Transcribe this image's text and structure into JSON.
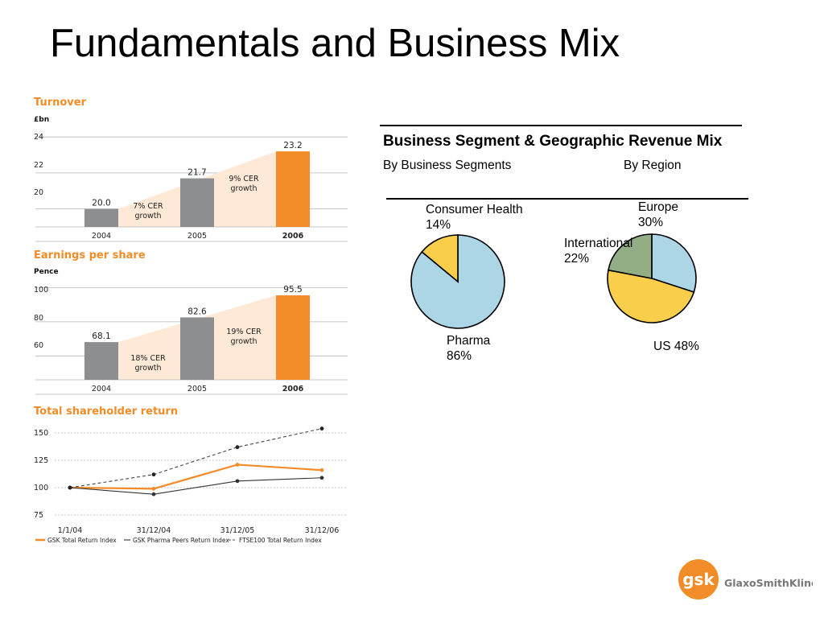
{
  "slide": {
    "title": "Fundamentals and Business Mix"
  },
  "turnover": {
    "title": "Turnover",
    "unit": "£bn",
    "y_ticks": [
      "24",
      "22",
      "20"
    ],
    "growth_labels": [
      [
        "7% CER",
        "growth"
      ],
      [
        "9% CER",
        "growth"
      ]
    ]
  },
  "eps": {
    "title": "Earnings per share",
    "unit": "Pence",
    "y_ticks": [
      "100",
      "80",
      "60"
    ],
    "growth_labels": [
      [
        "18% CER",
        "growth"
      ],
      [
        "19% CER",
        "growth"
      ]
    ]
  },
  "tsr": {
    "title": "Total shareholder return",
    "y_ticks": [
      "150",
      "125",
      "100",
      "75"
    ],
    "legend": [
      "GSK Total Return Index",
      "GSK Pharma Peers Return Index",
      "FTSE100 Total Return Index"
    ]
  },
  "mix": {
    "heading": "Business Segment & Geographic Revenue Mix",
    "sub_segments": "By Business Segments",
    "sub_region": "By Region",
    "labels": {
      "consumer_name": "Consumer Health",
      "consumer_pct": "14%",
      "pharma_name": "Pharma",
      "pharma_pct": "86%",
      "europe_name": "Europe",
      "europe_pct": "30%",
      "intl_name": "International",
      "intl_pct": "22%",
      "us": "US 48%"
    }
  },
  "logo": {
    "mark": "gsk",
    "wordmark": "GlaxoSmithKline"
  },
  "colors": {
    "orange": "#f28c28",
    "grey_bar": "#8c8e90",
    "growth_band": "#fde9d6",
    "light_blue": "#acd6e6",
    "yellow": "#f8ce4a",
    "sage": "#93ad84"
  },
  "chart_data": [
    {
      "type": "bar",
      "title": "Turnover",
      "ylabel": "£bn",
      "categories": [
        "2004",
        "2005",
        "2006"
      ],
      "values": [
        20.0,
        21.7,
        23.2
      ],
      "value_labels": [
        "20.0",
        "21.7",
        "23.2"
      ],
      "ylim": [
        19,
        24.5
      ],
      "highlight": "2006",
      "annotations": [
        "7% CER growth",
        "9% CER growth"
      ],
      "grid": true
    },
    {
      "type": "bar",
      "title": "Earnings per share",
      "ylabel": "Pence",
      "categories": [
        "2004",
        "2005",
        "2006"
      ],
      "values": [
        68.1,
        82.6,
        95.5
      ],
      "value_labels": [
        "68.1",
        "82.6",
        "95.5"
      ],
      "ylim": [
        46,
        104
      ],
      "highlight": "2006",
      "annotations": [
        "18% CER growth",
        "19% CER growth"
      ],
      "grid": true
    },
    {
      "type": "line",
      "title": "Total shareholder return",
      "x": [
        "1/1/04",
        "31/12/04",
        "31/12/05",
        "31/12/06"
      ],
      "ylim": [
        70,
        160
      ],
      "grid": true,
      "legend": "bottom",
      "series": [
        {
          "name": "GSK Total Return Index",
          "values": [
            100,
            99,
            121,
            116
          ]
        },
        {
          "name": "GSK Pharma Peers Return Index",
          "values": [
            100,
            94,
            106,
            109
          ]
        },
        {
          "name": "FTSE100 Total Return Index",
          "values": [
            100,
            112,
            137,
            154
          ]
        }
      ]
    },
    {
      "type": "pie",
      "title": "By Business Segments",
      "labels": [
        "Consumer Health",
        "Pharma"
      ],
      "values": [
        14,
        86
      ]
    },
    {
      "type": "pie",
      "title": "By Region",
      "labels": [
        "Europe",
        "US",
        "International"
      ],
      "values": [
        30,
        48,
        22
      ]
    }
  ]
}
